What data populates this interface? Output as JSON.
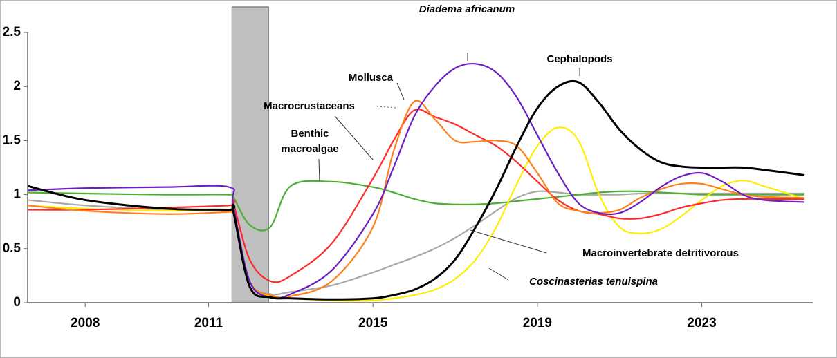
{
  "chart_data": {
    "type": "line",
    "x": [
      2006.6,
      2008,
      2010,
      2011.5,
      2011.6,
      2012,
      2012.5,
      2013,
      2014,
      2015,
      2015.5,
      2016,
      2016.5,
      2017,
      2017.5,
      2018,
      2018.5,
      2019,
      2019.5,
      2020,
      2020.5,
      2021,
      2021.5,
      2022,
      2022.5,
      2023,
      2023.5,
      2024,
      2024.5,
      2025.5
    ],
    "xlim": [
      2006.6,
      2025.7
    ],
    "xticks": [
      2008,
      2011,
      2015,
      2019,
      2023
    ],
    "ylim": [
      0,
      2.5
    ],
    "yticks": [
      0,
      0.5,
      1,
      1.5,
      2,
      2.5
    ],
    "shade": [
      2011.57,
      2012.46
    ],
    "series": [
      {
        "name": "Macroinvertebrate detritivorous",
        "color": "#a8a8a8",
        "values": [
          0.95,
          0.9,
          0.86,
          0.85,
          0.84,
          0.2,
          0.08,
          0.1,
          0.16,
          0.28,
          0.35,
          0.42,
          0.5,
          0.6,
          0.72,
          0.85,
          0.97,
          1.03,
          1.02,
          1.0,
          1.0,
          1.0,
          1.01,
          1.01,
          1.01,
          1.01,
          1.01,
          1.01,
          1.01,
          1.01
        ]
      },
      {
        "name": "Benthic macroalgae",
        "color": "#4caf30",
        "values": [
          1.02,
          1.01,
          1.0,
          1.0,
          0.98,
          0.72,
          0.7,
          1.08,
          1.12,
          1.07,
          1.02,
          0.96,
          0.92,
          0.91,
          0.91,
          0.92,
          0.94,
          0.96,
          0.98,
          1.0,
          1.02,
          1.03,
          1.03,
          1.02,
          1.01,
          1.0,
          1.0,
          1.0,
          1.0,
          1.0
        ]
      },
      {
        "name": "Coscinasterias tenuispina",
        "color": "#ffee00",
        "italic": true,
        "values": [
          0.9,
          0.87,
          0.85,
          0.86,
          0.86,
          0.2,
          0.06,
          0.04,
          0.02,
          0.02,
          0.04,
          0.07,
          0.12,
          0.22,
          0.4,
          0.7,
          1.1,
          1.45,
          1.62,
          1.5,
          1.0,
          0.7,
          0.64,
          0.68,
          0.8,
          0.95,
          1.08,
          1.13,
          1.08,
          0.96
        ]
      },
      {
        "name": "Macrocrustaceans",
        "color": "#ff2a2a",
        "values": [
          0.86,
          0.86,
          0.88,
          0.9,
          0.92,
          0.4,
          0.2,
          0.25,
          0.55,
          1.15,
          1.5,
          1.78,
          1.72,
          1.65,
          1.55,
          1.45,
          1.3,
          1.12,
          0.95,
          0.85,
          0.82,
          0.78,
          0.78,
          0.82,
          0.88,
          0.92,
          0.95,
          0.96,
          0.96,
          0.96
        ]
      },
      {
        "name": "Mollusca",
        "color": "#ff7f1a",
        "values": [
          0.9,
          0.85,
          0.82,
          0.84,
          0.85,
          0.2,
          0.07,
          0.06,
          0.2,
          0.7,
          1.4,
          1.86,
          1.7,
          1.5,
          1.49,
          1.5,
          1.45,
          1.2,
          0.92,
          0.85,
          0.83,
          0.86,
          0.97,
          1.05,
          1.1,
          1.1,
          1.05,
          1.0,
          0.98,
          0.97
        ]
      },
      {
        "name": "Diadema africanum",
        "color": "#6a1fc2",
        "italic": true,
        "values": [
          1.04,
          1.06,
          1.07,
          1.07,
          0.9,
          0.2,
          0.05,
          0.08,
          0.3,
          0.82,
          1.25,
          1.72,
          2.0,
          2.17,
          2.21,
          2.13,
          1.9,
          1.55,
          1.2,
          0.92,
          0.83,
          0.83,
          0.93,
          1.07,
          1.17,
          1.2,
          1.12,
          1.0,
          0.95,
          0.93
        ]
      },
      {
        "name": "Cephalopods",
        "color": "#000000",
        "values": [
          1.08,
          0.95,
          0.87,
          0.86,
          0.85,
          0.15,
          0.05,
          0.04,
          0.03,
          0.04,
          0.07,
          0.12,
          0.22,
          0.4,
          0.7,
          1.05,
          1.45,
          1.8,
          2.0,
          2.04,
          1.85,
          1.6,
          1.42,
          1.3,
          1.26,
          1.25,
          1.25,
          1.25,
          1.23,
          1.18
        ]
      }
    ]
  }
}
